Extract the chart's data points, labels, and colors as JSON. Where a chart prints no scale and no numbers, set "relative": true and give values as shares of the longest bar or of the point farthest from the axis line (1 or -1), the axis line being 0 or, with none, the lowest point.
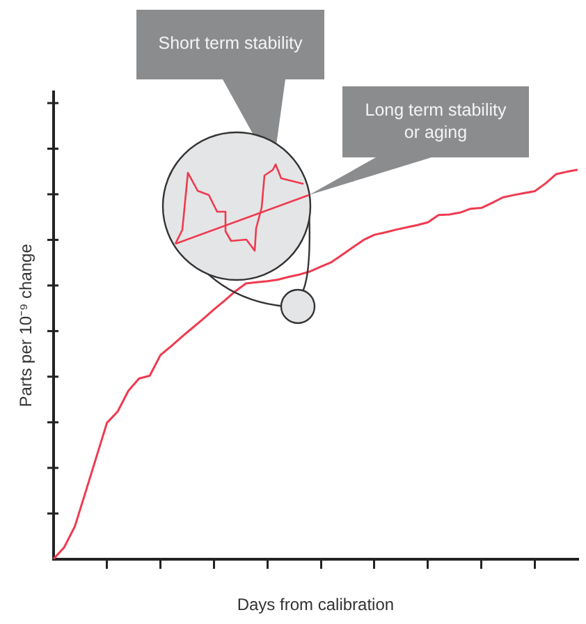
{
  "chart_data": {
    "type": "line",
    "relative": true,
    "xlabel": "Days from calibration",
    "ylabel": "Parts per 10⁻⁹ change",
    "annotations": [
      "Short term stability",
      "Long term stability or aging"
    ],
    "categories": [
      null,
      null,
      null,
      null,
      null,
      null,
      null,
      null,
      null,
      null,
      null,
      null,
      null,
      null,
      null,
      null,
      null,
      null,
      null,
      null,
      null,
      null,
      null,
      null,
      null,
      null,
      null,
      null,
      null,
      null,
      null,
      null,
      null,
      null,
      null,
      null,
      null,
      null,
      null,
      null,
      null,
      null,
      null,
      null,
      null,
      null,
      null,
      null,
      null,
      null
    ],
    "grid": false,
    "legend": false,
    "marker": "none",
    "line_style": "solid",
    "series": [
      {
        "color": "#ee3a4f",
        "values": [
          0,
          0.03,
          0.084,
          0.172,
          0.261,
          0.35,
          0.379,
          0.432,
          0.464,
          0.471,
          0.524,
          0.547,
          0.571,
          0.594,
          0.617,
          0.641,
          0.664,
          0.688,
          0.708,
          0.711,
          0.714,
          0.718,
          0.725,
          0.731,
          0.739,
          0.751,
          0.763,
          0.782,
          0.801,
          0.82,
          0.833,
          0.839,
          0.846,
          0.852,
          0.858,
          0.865,
          0.884,
          0.885,
          0.89,
          0.9,
          0.902,
          0.915,
          0.929,
          0.935,
          0.94,
          0.945,
          0.965,
          0.989,
          0.995,
          1
        ]
      }
    ]
  }
}
